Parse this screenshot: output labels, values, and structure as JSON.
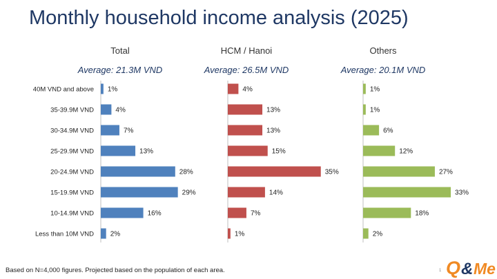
{
  "title": "Monthly household income analysis (2025)",
  "footnote": "Based on N=4,000 figures. Projected based on the population of each area.",
  "page_number": "1",
  "logo_text": "Q&Me",
  "colors": {
    "title": "#1f3864",
    "total": "#4f81bd",
    "hcm": "#c0504d",
    "others": "#9bbb59",
    "logo_orange": "#f08a24",
    "logo_blue": "#1f3864"
  },
  "chart_data": {
    "type": "bar",
    "orientation": "horizontal",
    "title": "Monthly household income analysis (2025)",
    "categories": [
      "40M VND and above",
      "35-39.9M VND",
      "30-34.9M VND",
      "25-29.9M VND",
      "20-24.9M VND",
      "15-19.9M VND",
      "10-14.9M VND",
      "Less than 10M VND"
    ],
    "series": [
      {
        "name": "Total",
        "average": "Average: 21.3M VND",
        "color": "#4f81bd",
        "values": [
          1,
          4,
          7,
          13,
          28,
          29,
          16,
          2
        ]
      },
      {
        "name": "HCM / Hanoi",
        "average": "Average: 26.5M VND",
        "color": "#c0504d",
        "values": [
          4,
          13,
          13,
          15,
          35,
          14,
          7,
          1
        ]
      },
      {
        "name": "Others",
        "average": "Average: 20.1M VND",
        "color": "#9bbb59",
        "values": [
          1,
          1,
          6,
          12,
          27,
          33,
          18,
          2
        ]
      }
    ],
    "value_suffix": "%",
    "xlim": [
      0,
      100
    ]
  }
}
